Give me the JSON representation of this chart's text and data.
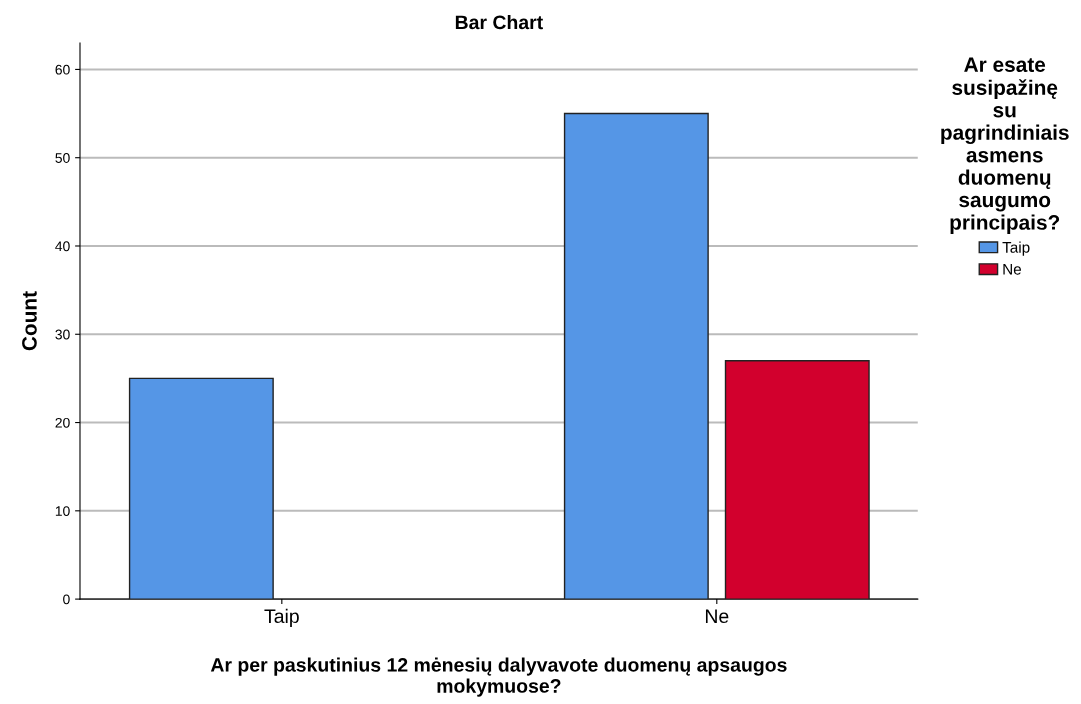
{
  "chart_data": {
    "type": "bar",
    "title": "Bar Chart",
    "xlabel": "Ar per paskutinius 12 mėnesių dalyvavote duomenų apsaugos\nmokymuose?",
    "ylabel": "Count",
    "legend_title": "Ar esate\nsusipažinę\nsu\npagrindiniais\nasmens\nduomenų\nsaugumo\nprincipais?",
    "categories": [
      "Taip",
      "Ne"
    ],
    "series": [
      {
        "name": "Taip",
        "color": "#5596e6",
        "values": [
          25,
          55
        ]
      },
      {
        "name": "Ne",
        "color": "#d2002d",
        "values": [
          null,
          27
        ]
      }
    ],
    "ylim": [
      0,
      63
    ],
    "yticks": [
      0,
      10,
      20,
      30,
      40,
      50,
      60
    ],
    "grid": "y",
    "legend": "right"
  }
}
